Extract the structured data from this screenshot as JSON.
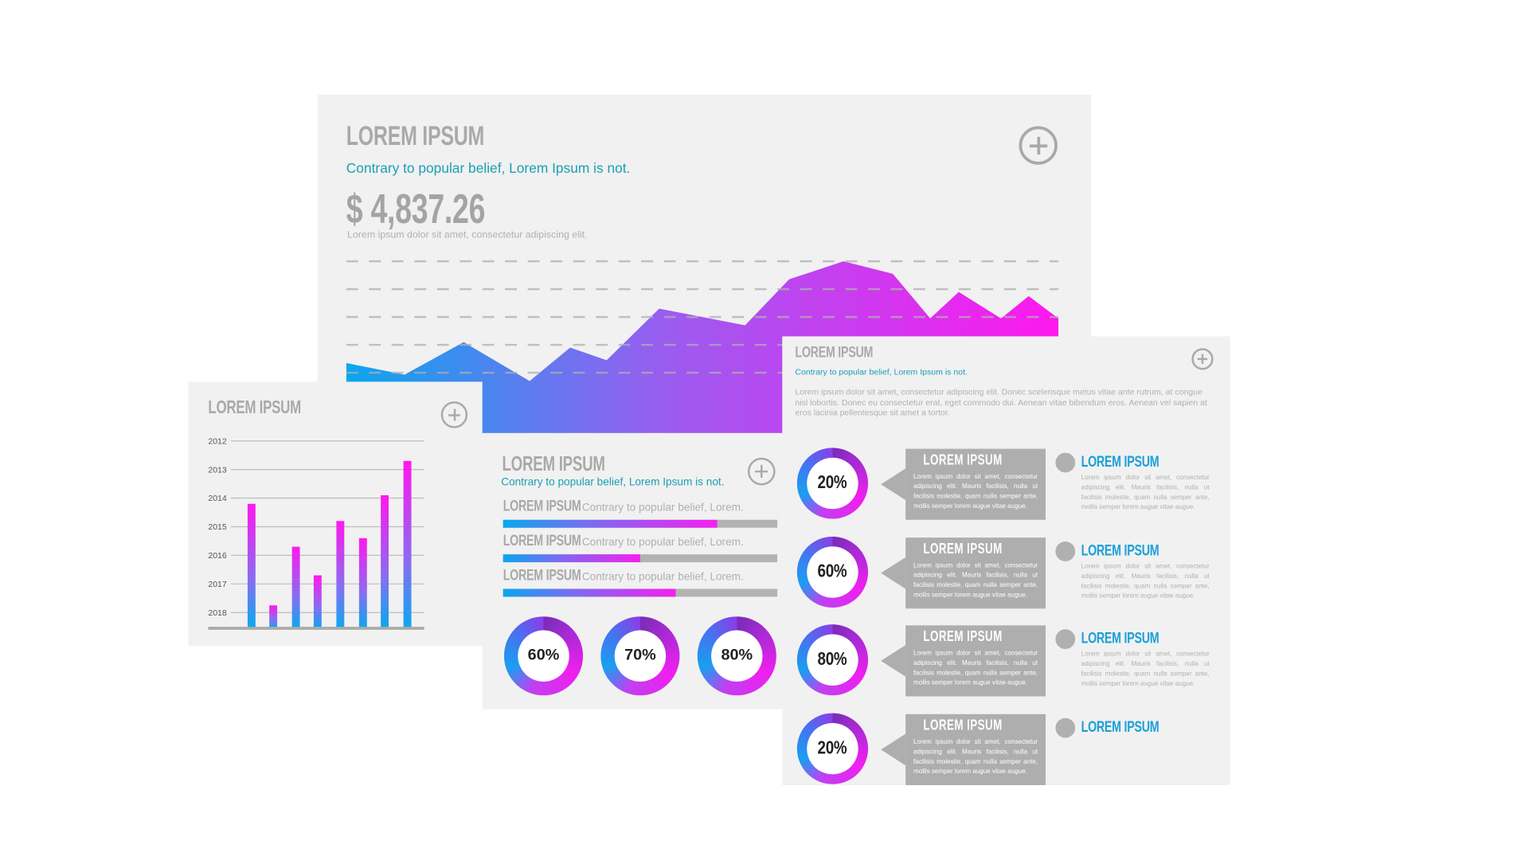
{
  "main_panel": {
    "title": "LOREM IPSUM",
    "subtitle": "Contrary to popular belief, Lorem Ipsum is not.",
    "amount": "$ 4,837.26",
    "caption": "Lorem ipsum dolor sit amet, consectetur adipiscing elit.",
    "add_icon": "plus-circle-icon"
  },
  "bar_panel": {
    "title": "LOREM IPSUM",
    "add_icon": "plus-circle-icon"
  },
  "progress_panel": {
    "title": "LOREM IPSUM",
    "subtitle": "Contrary to popular belief, Lorem Ipsum is not.",
    "add_icon": "plus-circle-icon",
    "rows": [
      {
        "label": "LOREM IPSUM",
        "text": "Contrary to popular belief, Lorem.",
        "progress": 0.78
      },
      {
        "label": "LOREM IPSUM",
        "text": "Contrary to popular belief, Lorem.",
        "progress": 0.5
      },
      {
        "label": "LOREM IPSUM",
        "text": "Contrary to popular belief, Lorem.",
        "progress": 0.63
      }
    ],
    "donuts": [
      {
        "label": "60%",
        "value": 60
      },
      {
        "label": "70%",
        "value": 70
      },
      {
        "label": "80%",
        "value": 80
      }
    ]
  },
  "info_panel": {
    "title": "LOREM IPSUM",
    "subtitle": "Contrary to popular belief, Lorem Ipsum is not.",
    "paragraph": "Lorem ipsum dolor sit amet, consectetur adipiscing elit. Donec scelerisque metus vitae ante rutrum, at congue nisl lobortis. Donec eu consectetur erat, eget commodo dui. Aenean vitae bibendum eros. Aenean vel sapien at eros lacinia pellentesque sit amet a tortor.",
    "add_icon": "plus-circle-icon",
    "items": [
      {
        "percent": "20%",
        "value": 20,
        "card_title": "LOREM IPSUM",
        "card_text": "Lorem ipsum dolor sit amet, consectetur adipiscing elit. Mauris facilisis, nulla ut facilisis molestie, quam nulla semper ante, mollis semper lorem augue vitae augue.",
        "side_title": "LOREM IPSUM",
        "side_text": "Lorem ipsum dolor sit amet, consectetur adipiscing elit. Mauris facilisis, nulla ut facilisis molestie, quam nulla semper ante, mollis semper lorem augue vitae augue."
      },
      {
        "percent": "60%",
        "value": 60,
        "card_title": "LOREM IPSUM",
        "card_text": "Lorem ipsum dolor sit amet, consectetur adipiscing elit. Mauris facilisis, nulla ut facilisis molestie, quam nulla semper ante, mollis semper lorem augue vitae augue.",
        "side_title": "LOREM IPSUM",
        "side_text": "Lorem ipsum dolor sit amet, consectetur adipiscing elit. Mauris facilisis, nulla ut facilisis molestie, quam nulla semper ante, mollis semper lorem augue vitae augue."
      },
      {
        "percent": "80%",
        "value": 80,
        "card_title": "LOREM IPSUM",
        "card_text": "Lorem ipsum dolor sit amet, consectetur adipiscing elit. Mauris facilisis, nulla ut facilisis molestie, quam nulla semper ante, mollis semper lorem augue vitae augue.",
        "side_title": "LOREM IPSUM",
        "side_text": "Lorem ipsum dolor sit amet, consectetur adipiscing elit. Mauris facilisis, nulla ut facilisis molestie, quam nulla semper ante, mollis semper lorem augue vitae augue."
      },
      {
        "percent": "20%",
        "value": 20,
        "card_title": "LOREM IPSUM",
        "card_text": "Lorem ipsum dolor sit amet, consectetur adipiscing elit. Mauris facilisis, nulla ut facilisis molestie, quam nulla semper ante, mollis semper lorem augue vitae augue.",
        "side_title": "LOREM IPSUM",
        "side_text": ""
      }
    ]
  },
  "colors": {
    "gradient_start": "#0aa6ee",
    "gradient_mid": "#7a6cf0",
    "gradient_end": "#f51ff0",
    "teal": "#1aa0b4",
    "title_gray": "#a9a9a9",
    "side_title_blue": "#1aa0d8"
  },
  "chart_data": [
    {
      "type": "area",
      "grid": true,
      "gridlines": "dashed horizontal",
      "x": [
        0,
        1.31,
        2.64,
        4.12,
        5.03,
        5.85,
        7.03,
        8.96,
        9.95,
        11.17,
        12.28,
        13.12,
        13.76,
        14.71,
        15.33,
        16
      ],
      "values": [
        0.35,
        -0.07,
        1.1,
        -0.3,
        0.9,
        0.45,
        2.3,
        1.7,
        3.35,
        4.0,
        3.55,
        1.95,
        2.9,
        1.95,
        2.75,
        1.95
      ],
      "ylim": [
        -2.2,
        4.35
      ],
      "gridline_values": [
        0,
        1,
        2,
        3,
        4
      ]
    },
    {
      "type": "bar",
      "grid": true,
      "y_tick_labels": [
        "2012",
        "2013",
        "2014",
        "2015",
        "2016",
        "2017",
        "2018"
      ],
      "y_inverted": true,
      "ylim": [
        2012,
        2018.55
      ],
      "values": [
        2014.2,
        2017.75,
        2015.7,
        2016.7,
        2014.8,
        2015.4,
        2013.9,
        2012.7
      ]
    }
  ]
}
